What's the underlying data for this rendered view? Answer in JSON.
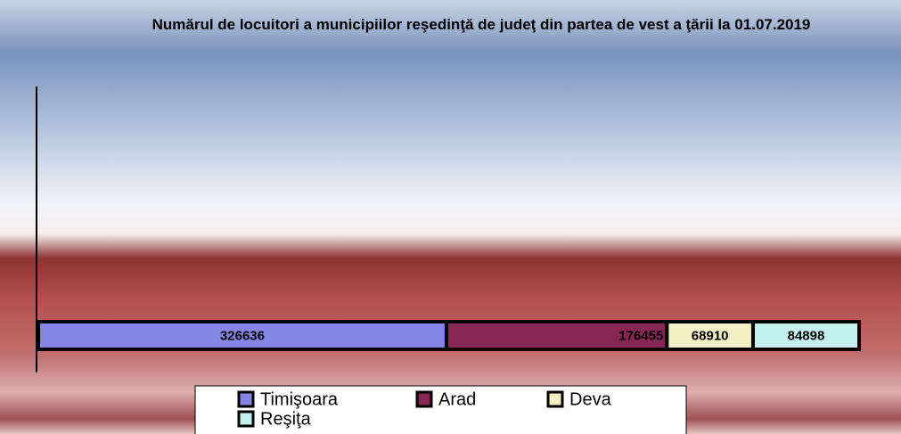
{
  "chart_data": {
    "type": "stacked-bar-horizontal",
    "title": "Numărul de locuitori a municipiilor reşedinţă de judeţ din partea de vest a ţării la 01.07.2019",
    "categories": [
      null
    ],
    "series": [
      {
        "name": "Timişoara",
        "color": "#8585e6",
        "values": [
          326636
        ]
      },
      {
        "name": "Arad",
        "color": "#862655",
        "values": [
          176455
        ]
      },
      {
        "name": "Deva",
        "color": "#f2f0c4",
        "values": [
          68910
        ]
      },
      {
        "name": "Reşiţa",
        "color": "#c4f0f0",
        "values": [
          84898
        ]
      }
    ],
    "legend": "bottom"
  }
}
